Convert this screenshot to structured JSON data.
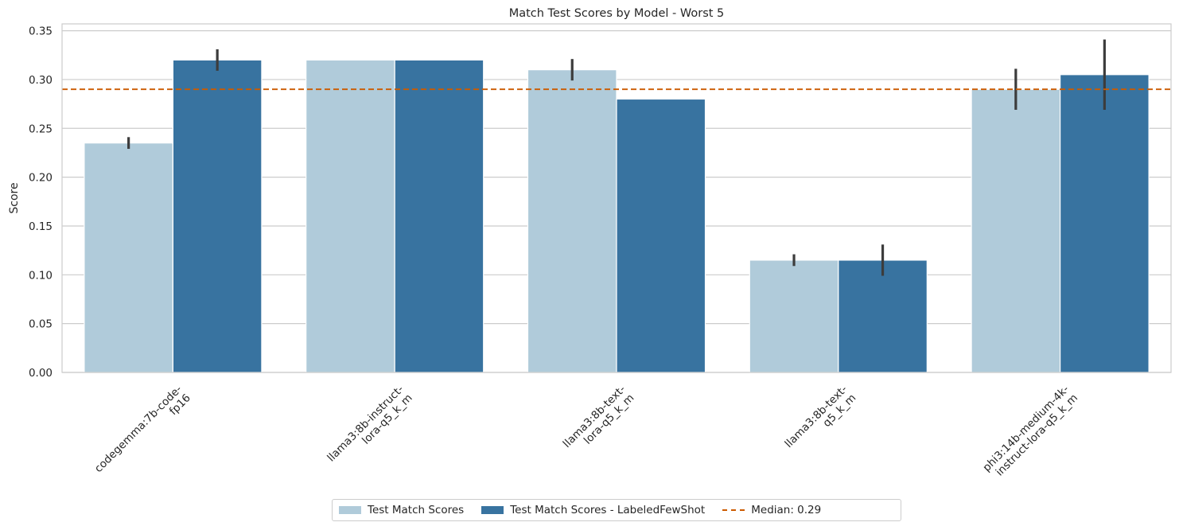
{
  "chart_data": {
    "type": "bar",
    "title": "Match Test Scores by Model - Worst 5",
    "xlabel": "",
    "ylabel": "Score",
    "ylim": [
      0,
      0.357
    ],
    "yticks": [
      "0.00",
      "0.05",
      "0.10",
      "0.15",
      "0.20",
      "0.25",
      "0.30",
      "0.35"
    ],
    "grid": "horizontal",
    "legend_position": "bottom-center",
    "categories": [
      [
        "codegemma:7b-code-",
        "fp16"
      ],
      [
        "llama3:8b-instruct-",
        "lora-q5_k_m"
      ],
      [
        "llama3:8b-text-",
        "lora-q5_k_m"
      ],
      [
        "llama3:8b-text-",
        "q5_k_m"
      ],
      [
        "phi3:14b-medium-4k-",
        "instruct-lora-q5_k_m"
      ]
    ],
    "series": [
      {
        "name": "Test Match Scores",
        "color": "#b0cbda",
        "values": [
          0.235,
          0.32,
          0.31,
          0.115,
          0.29
        ],
        "error_low": [
          0.229,
          0.32,
          0.299,
          0.109,
          0.269
        ],
        "error_high": [
          0.241,
          0.32,
          0.321,
          0.121,
          0.311
        ]
      },
      {
        "name": "Test Match Scores - LabeledFewShot",
        "color": "#3873a0",
        "values": [
          0.32,
          0.32,
          0.28,
          0.115,
          0.305
        ],
        "error_low": [
          0.309,
          0.32,
          0.28,
          0.099,
          0.269
        ],
        "error_high": [
          0.331,
          0.32,
          0.28,
          0.131,
          0.341
        ]
      }
    ],
    "reference_line": {
      "value": 0.29,
      "label": "Median: 0.29",
      "color": "#cc5a00",
      "style": "dashed"
    }
  }
}
